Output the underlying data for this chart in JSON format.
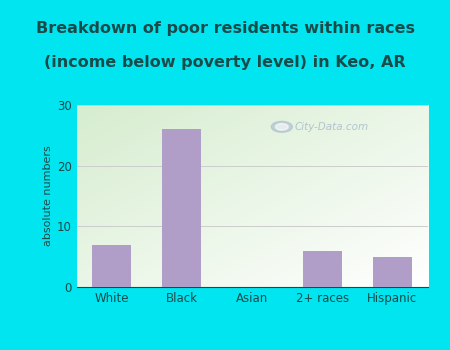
{
  "categories": [
    "White",
    "Black",
    "Asian",
    "2+ races",
    "Hispanic"
  ],
  "values": [
    7,
    26,
    0,
    6,
    5
  ],
  "bar_color": "#b09ec9",
  "title_line1": "Breakdown of poor residents within races",
  "title_line2": "(income below poverty level) in Keo, AR",
  "ylabel": "absolute numbers",
  "ylim": [
    0,
    30
  ],
  "yticks": [
    0,
    10,
    20,
    30
  ],
  "outer_bg": "#00e5f0",
  "plot_bg_topleft": "#d6edcf",
  "plot_bg_bottomright": "#ffffff",
  "title_color": "#1a4a4a",
  "axis_color": "#1a4a4a",
  "tick_color": "#1a4a4a",
  "grid_color": "#cccccc",
  "watermark": "City-Data.com",
  "title_fontsize": 11.5,
  "ylabel_fontsize": 8,
  "tick_fontsize": 8.5
}
